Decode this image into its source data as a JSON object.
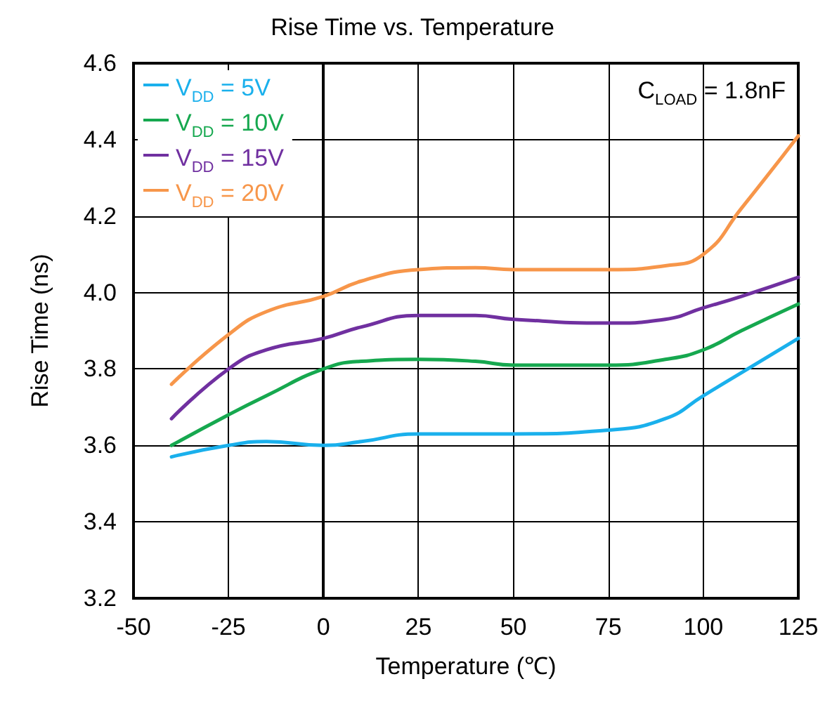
{
  "chart_data": {
    "type": "line",
    "title": "Rise Time vs. Temperature",
    "xlabel": "Temperature (℃)",
    "ylabel": "Rise Time (ns)",
    "annotations": [
      "C$_{LOAD}$ = 1.8nF"
    ],
    "x": [
      -40,
      -25,
      -15,
      0,
      10,
      25,
      40,
      50,
      75,
      90,
      100,
      110,
      125
    ],
    "series": [
      {
        "name": "V$_{DD}$ = 5V",
        "color": "#1ab0ec",
        "values": [
          3.57,
          3.6,
          3.61,
          3.6,
          3.61,
          3.63,
          3.63,
          3.63,
          3.64,
          3.67,
          3.73,
          3.79,
          3.88
        ]
      },
      {
        "name": "V$_{DD}$ = 10V",
        "color": "#16a84f",
        "values": [
          3.6,
          3.68,
          3.73,
          3.8,
          3.82,
          3.825,
          3.82,
          3.81,
          3.81,
          3.825,
          3.85,
          3.9,
          3.97
        ]
      },
      {
        "name": "V$_{DD}$ = 15V",
        "color": "#7030a0",
        "values": [
          3.67,
          3.8,
          3.85,
          3.88,
          3.91,
          3.94,
          3.94,
          3.93,
          3.92,
          3.93,
          3.96,
          3.99,
          4.04
        ]
      },
      {
        "name": "V$_{DD}$ = 20V",
        "color": "#f7964a",
        "values": [
          3.76,
          3.89,
          3.95,
          3.99,
          4.03,
          4.06,
          4.065,
          4.06,
          4.06,
          4.07,
          4.1,
          4.22,
          4.41
        ]
      }
    ],
    "xlim": [
      -50,
      125
    ],
    "xticks": [
      -50,
      -25,
      0,
      25,
      50,
      75,
      100,
      125
    ],
    "ylim": [
      3.2,
      4.6
    ],
    "yticks": [
      3.2,
      3.4,
      3.6,
      3.8,
      {
        "value": 4,
        "label": "4.0"
      },
      4.2,
      4.4,
      4.6
    ],
    "grid": true,
    "legend": "top left",
    "marker": "none",
    "line_style": "solid"
  }
}
